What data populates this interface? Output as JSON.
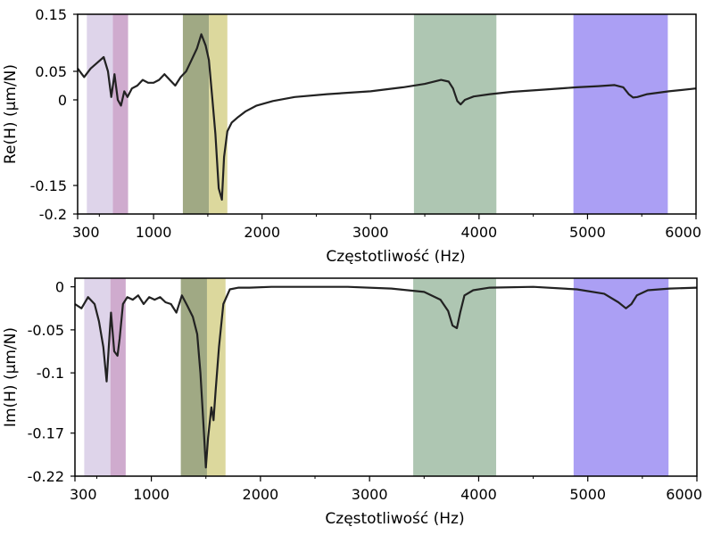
{
  "chart_data": [
    {
      "type": "line",
      "xlabel": "Częstotliwość (Hz)",
      "ylabel": "Re(H) (μm/N)",
      "xlim": [
        300,
        6000
      ],
      "ylim": [
        -0.2,
        0.15
      ],
      "x_ticks": [
        300,
        1000,
        2000,
        3000,
        4000,
        5000,
        6000
      ],
      "x_tick_labels": [
        "300",
        "1000",
        "2000",
        "3000",
        "4000",
        "5000",
        "6000"
      ],
      "y_ticks": [
        0.15,
        0.05,
        0,
        -0.15,
        -0.2
      ],
      "y_tick_labels": [
        "0.15",
        "0.05",
        "0",
        "-0.15",
        "-0.2"
      ],
      "grid": false,
      "bands": [
        {
          "x": [
            385,
            625
          ],
          "color": "#d8cde6"
        },
        {
          "x": [
            625,
            765
          ],
          "color": "#c79cc6"
        },
        {
          "x": [
            1270,
            1510
          ],
          "color": "#8f9a6e"
        },
        {
          "x": [
            1510,
            1680
          ],
          "color": "#d6d18c"
        },
        {
          "x": [
            3400,
            4160
          ],
          "color": "#a0bca4"
        },
        {
          "x": [
            4870,
            5740
          ],
          "color": "#9c8ef2"
        }
      ],
      "series": [
        {
          "color": "#222222",
          "x": [
            300,
            360,
            420,
            480,
            540,
            580,
            610,
            640,
            670,
            700,
            730,
            760,
            800,
            850,
            900,
            950,
            1000,
            1050,
            1100,
            1150,
            1200,
            1250,
            1300,
            1350,
            1400,
            1440,
            1480,
            1510,
            1540,
            1570,
            1600,
            1630,
            1650,
            1680,
            1720,
            1780,
            1850,
            1950,
            2100,
            2300,
            2600,
            3000,
            3300,
            3500,
            3650,
            3720,
            3760,
            3800,
            3830,
            3870,
            3950,
            4100,
            4300,
            4600,
            4900,
            5100,
            5250,
            5330,
            5380,
            5420,
            5460,
            5550,
            5750,
            6000
          ],
          "y": [
            0.055,
            0.04,
            0.055,
            0.065,
            0.075,
            0.05,
            0.005,
            0.045,
            0.0,
            -0.01,
            0.015,
            0.005,
            0.02,
            0.025,
            0.035,
            0.03,
            0.03,
            0.035,
            0.045,
            0.035,
            0.025,
            0.04,
            0.05,
            0.07,
            0.09,
            0.115,
            0.095,
            0.07,
            0.005,
            -0.06,
            -0.155,
            -0.175,
            -0.1,
            -0.055,
            -0.04,
            -0.03,
            -0.02,
            -0.01,
            -0.002,
            0.005,
            0.01,
            0.015,
            0.022,
            0.028,
            0.035,
            0.032,
            0.02,
            -0.002,
            -0.008,
            0.0,
            0.006,
            0.01,
            0.014,
            0.018,
            0.022,
            0.024,
            0.026,
            0.022,
            0.01,
            0.004,
            0.005,
            0.01,
            0.015,
            0.02
          ]
        }
      ]
    },
    {
      "type": "line",
      "xlabel": "Częstotliwość (Hz)",
      "ylabel": "Im(H) (μm/N)",
      "xlim": [
        300,
        6000
      ],
      "ylim": [
        -0.22,
        0.01
      ],
      "x_ticks": [
        300,
        1000,
        2000,
        3000,
        4000,
        5000,
        6000
      ],
      "x_tick_labels": [
        "300",
        "1000",
        "2000",
        "3000",
        "4000",
        "5000",
        "6000"
      ],
      "y_ticks": [
        0,
        -0.05,
        -0.1,
        -0.17,
        -0.22
      ],
      "y_tick_labels": [
        "0",
        "-0.05",
        "-0.1",
        "-0.17",
        "-0.22"
      ],
      "grid": false,
      "bands": [
        {
          "x": [
            385,
            625
          ],
          "color": "#d8cde6"
        },
        {
          "x": [
            625,
            765
          ],
          "color": "#c79cc6"
        },
        {
          "x": [
            1270,
            1510
          ],
          "color": "#8f9a6e"
        },
        {
          "x": [
            1510,
            1680
          ],
          "color": "#d6d18c"
        },
        {
          "x": [
            3400,
            4160
          ],
          "color": "#a0bca4"
        },
        {
          "x": [
            4870,
            5740
          ],
          "color": "#9c8ef2"
        }
      ],
      "series": [
        {
          "color": "#222222",
          "x": [
            300,
            360,
            420,
            480,
            520,
            560,
            590,
            610,
            630,
            660,
            690,
            710,
            740,
            780,
            830,
            880,
            930,
            980,
            1030,
            1080,
            1130,
            1180,
            1230,
            1280,
            1330,
            1380,
            1420,
            1450,
            1480,
            1500,
            1520,
            1550,
            1570,
            1590,
            1620,
            1660,
            1720,
            1800,
            1900,
            2100,
            2400,
            2800,
            3200,
            3500,
            3650,
            3720,
            3760,
            3800,
            3830,
            3870,
            3950,
            4100,
            4500,
            4900,
            5150,
            5280,
            5350,
            5400,
            5450,
            5550,
            5750,
            6000
          ],
          "y": [
            -0.02,
            -0.025,
            -0.012,
            -0.02,
            -0.04,
            -0.07,
            -0.11,
            -0.07,
            -0.03,
            -0.075,
            -0.08,
            -0.06,
            -0.02,
            -0.012,
            -0.015,
            -0.01,
            -0.02,
            -0.012,
            -0.015,
            -0.012,
            -0.018,
            -0.02,
            -0.03,
            -0.01,
            -0.022,
            -0.035,
            -0.055,
            -0.1,
            -0.165,
            -0.21,
            -0.175,
            -0.14,
            -0.155,
            -0.12,
            -0.07,
            -0.02,
            -0.003,
            -0.001,
            -0.001,
            0.0,
            0.0,
            0.0,
            -0.002,
            -0.006,
            -0.015,
            -0.028,
            -0.045,
            -0.048,
            -0.03,
            -0.01,
            -0.004,
            -0.001,
            0.0,
            -0.003,
            -0.008,
            -0.018,
            -0.025,
            -0.02,
            -0.01,
            -0.004,
            -0.002,
            -0.001
          ]
        }
      ]
    }
  ]
}
